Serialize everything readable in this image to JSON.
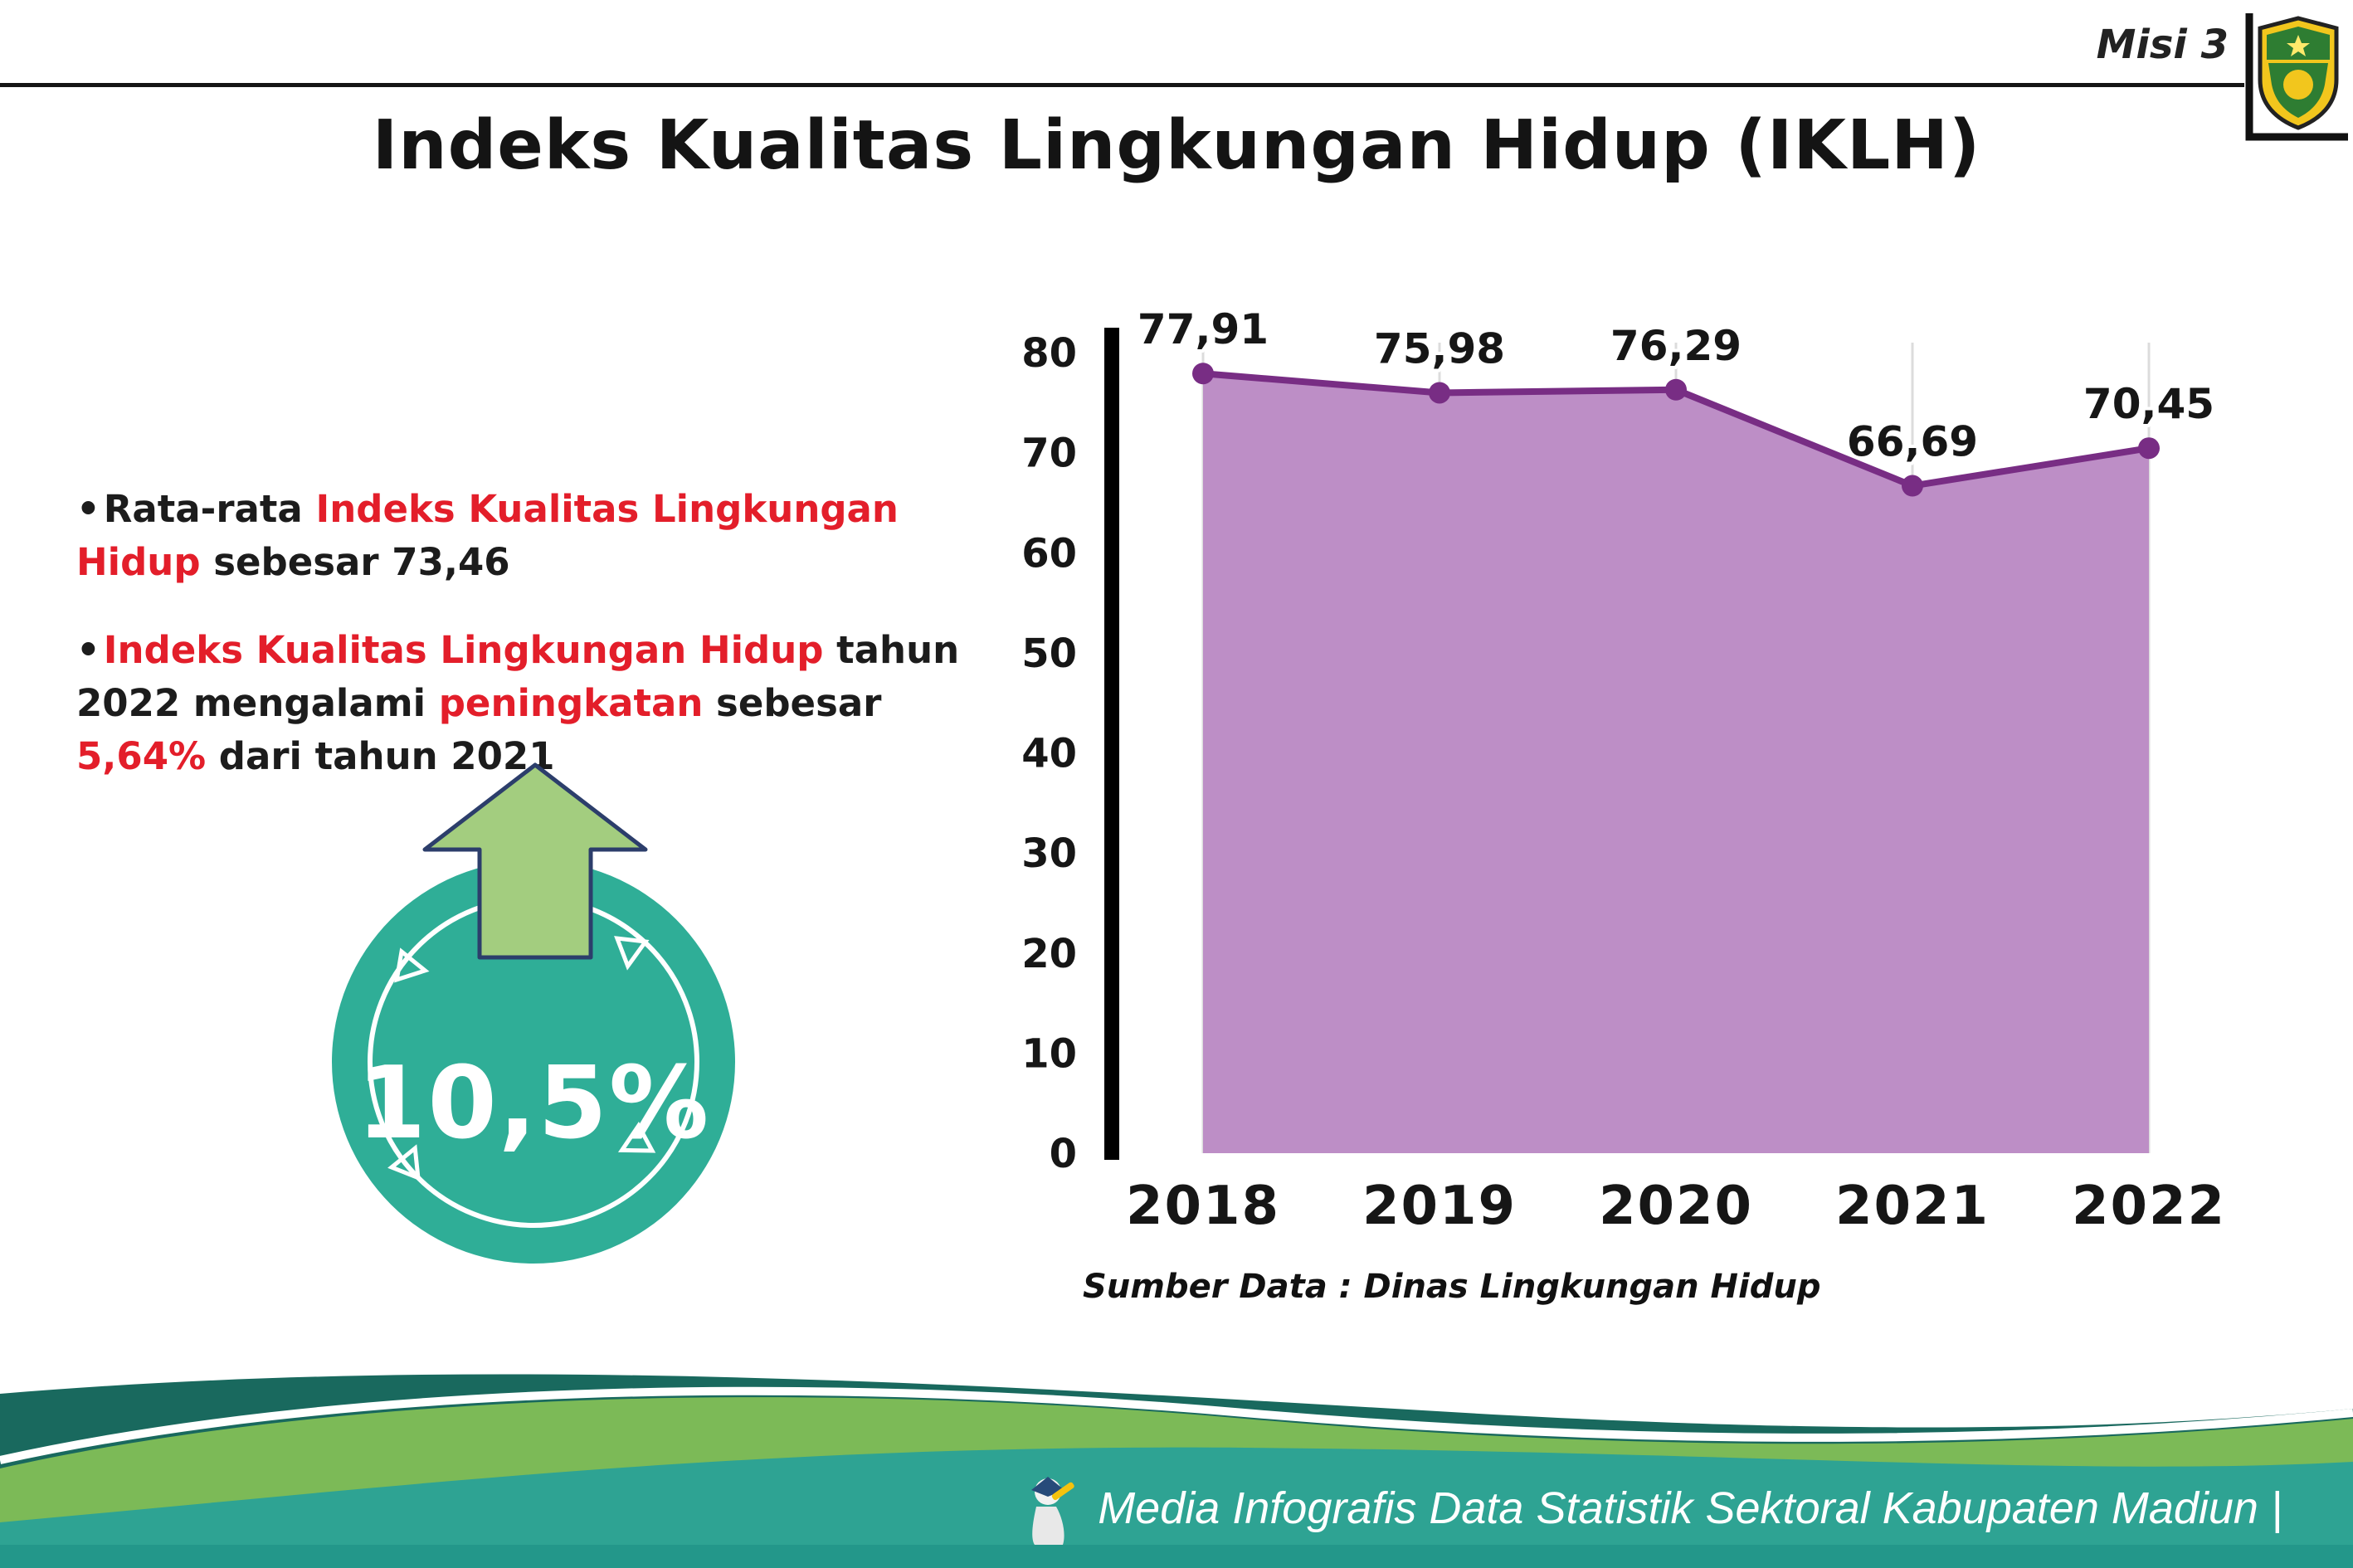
{
  "header": {
    "misi_label": "Misi 3",
    "title": "Indeks Kualitas Lingkungan Hidup (IKLH)",
    "logo": "kabupaten-madiun-crest"
  },
  "bullets": {
    "marker": "•",
    "b1": {
      "p1": "Rata-rata ",
      "p2_red": "Indeks Kualitas Lingkungan Hidup",
      "p3": " sebesar 73,46"
    },
    "b2": {
      "p1_red": "Indeks Kualitas Lingkungan Hidup",
      "p2": " tahun 2022 mengalami ",
      "p3_red": "peningkatan",
      "p4": " sebesar ",
      "p5_red": "5,64%",
      "p6": " dari tahun 2021"
    }
  },
  "badge": {
    "value": "10,5%",
    "icon": "up-arrow-icon"
  },
  "chart_data": {
    "type": "area",
    "title": "Indeks Kualitas Lingkungan Hidup (IKLH)",
    "categories": [
      "2018",
      "2019",
      "2020",
      "2021",
      "2022"
    ],
    "values": [
      77.91,
      75.98,
      76.29,
      66.69,
      70.45
    ],
    "point_labels": [
      "77,91",
      "75,98",
      "76,29",
      "66,69",
      "70,45"
    ],
    "xlabel": "",
    "ylabel": "",
    "ylim": [
      0,
      80
    ],
    "yticks": [
      0,
      10,
      20,
      30,
      40,
      50,
      60,
      70,
      80
    ],
    "grid": "vertical-light",
    "legend": "none",
    "fill_color": "#bd8ec6",
    "line_color": "#782d84",
    "source": "Sumber Data : Dinas Lingkungan Hidup"
  },
  "footer": {
    "icon": "mascot-icon",
    "text": "Media Infografis Data Statistik Sektoral Kabupaten Madiun |"
  },
  "colors": {
    "accent_red": "#e31e2a",
    "badge_teal": "#2fae97",
    "arrow_green": "#a3cd7f",
    "arrow_outline": "#2c3e6b",
    "footer_teal": "#2ea393",
    "footer_green": "#7cba57",
    "footer_dark_teal": "#19695e"
  }
}
